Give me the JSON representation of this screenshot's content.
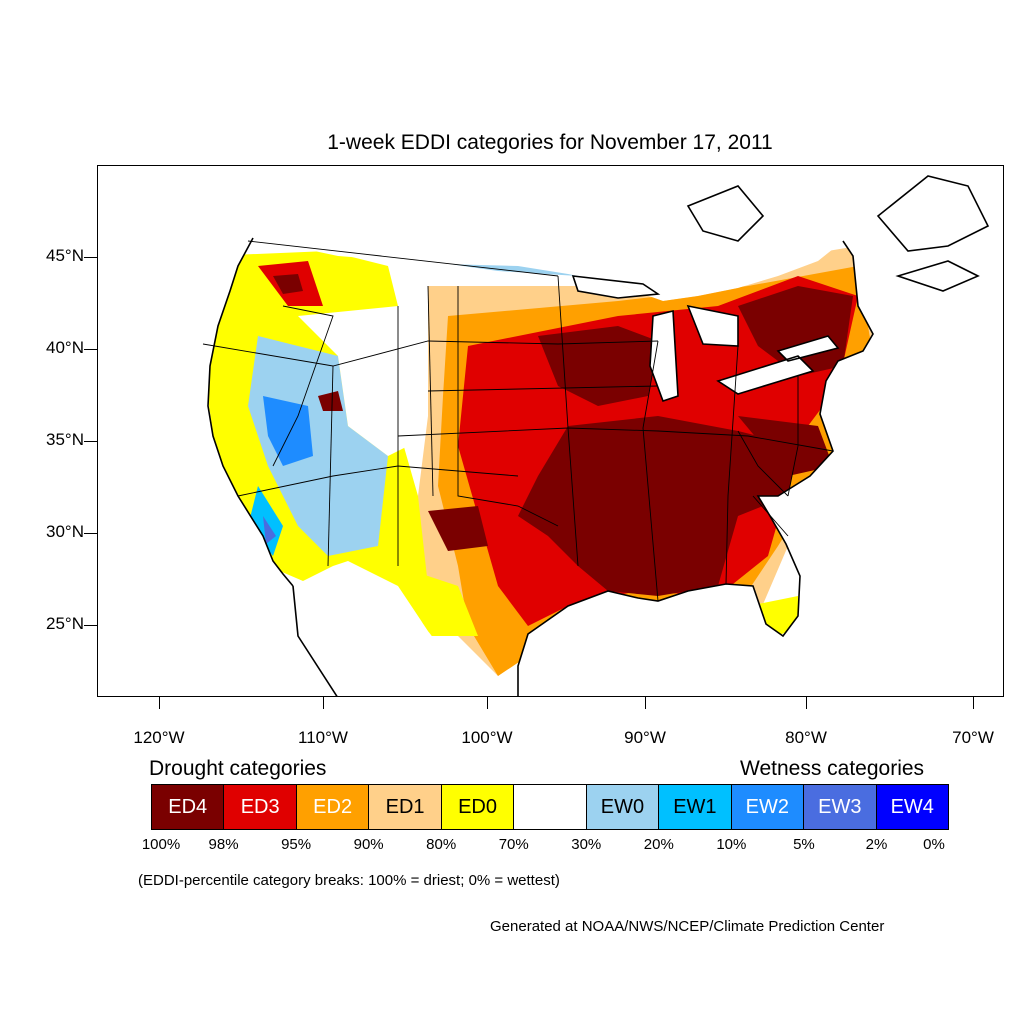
{
  "title": "1-week EDDI categories for November 17, 2011",
  "axes": {
    "lat_labels": [
      "45°N",
      "40°N",
      "35°N",
      "30°N",
      "25°N"
    ],
    "lon_labels": [
      "120°W",
      "110°W",
      "100°W",
      "90°W",
      "80°W",
      "70°W"
    ]
  },
  "legend": {
    "drought_heading": "Drought categories",
    "wetness_heading": "Wetness categories",
    "categories": [
      {
        "label": "ED4",
        "color": "#7a0000",
        "text_color": "#ffffff"
      },
      {
        "label": "ED3",
        "color": "#e00000",
        "text_color": "#ffffff"
      },
      {
        "label": "ED2",
        "color": "#ffa000",
        "text_color": "#ffffff"
      },
      {
        "label": "ED1",
        "color": "#ffd08a",
        "text_color": "#000000"
      },
      {
        "label": "ED0",
        "color": "#ffff00",
        "text_color": "#000000"
      },
      {
        "label": "",
        "color": "#ffffff",
        "text_color": "#000000"
      },
      {
        "label": "EW0",
        "color": "#9cd2f0",
        "text_color": "#000000"
      },
      {
        "label": "EW1",
        "color": "#00c0ff",
        "text_color": "#000000"
      },
      {
        "label": "EW2",
        "color": "#1e8cff",
        "text_color": "#ffffff"
      },
      {
        "label": "EW3",
        "color": "#4a6de0",
        "text_color": "#ffffff"
      },
      {
        "label": "EW4",
        "color": "#0000ff",
        "text_color": "#ffffff"
      }
    ],
    "breaks": [
      "100%",
      "98%",
      "95%",
      "90%",
      "80%",
      "70%",
      "30%",
      "20%",
      "10%",
      "5%",
      "2%",
      "0%"
    ]
  },
  "note": "(EDDI-percentile category breaks: 100% = driest; 0% = wettest)",
  "credit": "Generated at NOAA/NWS/NCEP/Climate Prediction Center"
}
